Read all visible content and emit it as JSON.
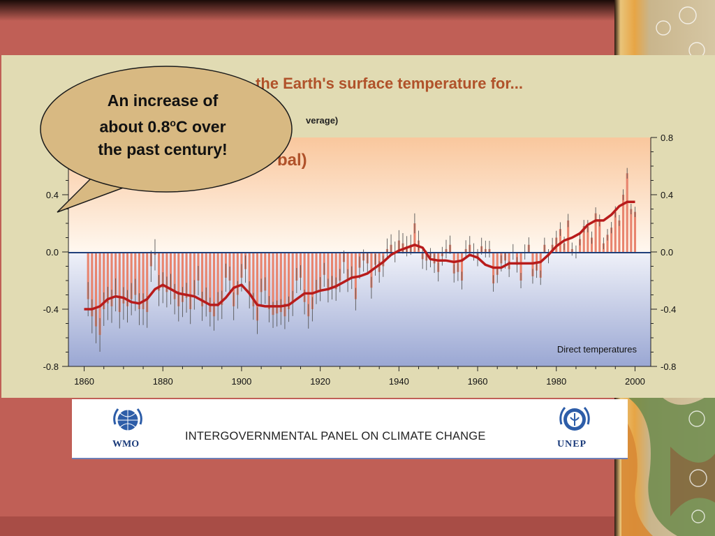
{
  "slide": {
    "callout": {
      "line1": "An increase of",
      "line2_prefix": "about 0.8",
      "line2_superscript": "o",
      "line2_suffix": "C over",
      "line3": "the past century!"
    },
    "footer": {
      "org_name": "INTERGOVERNMENTAL PANEL ON CLIMATE CHANGE",
      "left_logo_label": "WMO",
      "right_logo_label": "UNEP"
    },
    "colors": {
      "background": "#c05f56",
      "chart_panel": "#e1dbb3",
      "title_color": "#b0522a",
      "bar_color": "#e8846e",
      "smooth_line": "#b81b1b",
      "zero_line": "#1f3f7a",
      "callout_fill": "#d8b982"
    }
  },
  "chart_data": {
    "type": "bar",
    "title_visible": "the Earth's surface temperature for...",
    "subtitle_visible": "verage)",
    "region_label_visible": "bal)",
    "annotation": "Direct temperatures",
    "x_ticks": [
      "1860",
      "1880",
      "1900",
      "1920",
      "1940",
      "1960",
      "1980",
      "2000"
    ],
    "y_ticks": [
      "0.8",
      "0.4",
      "0.0",
      "-0.4",
      "-0.8"
    ],
    "y_ticks_left_visible": [
      "0.4",
      "0.0",
      "-0.4",
      "-0.8"
    ],
    "xlim": [
      1856,
      2004
    ],
    "ylim": [
      -0.8,
      0.8
    ],
    "series": [
      {
        "kind": "annual-bars",
        "x": [
          1861,
          1862,
          1863,
          1864,
          1865,
          1866,
          1867,
          1868,
          1869,
          1870,
          1871,
          1872,
          1873,
          1874,
          1875,
          1876,
          1877,
          1878,
          1879,
          1880,
          1881,
          1882,
          1883,
          1884,
          1885,
          1886,
          1887,
          1888,
          1889,
          1890,
          1891,
          1892,
          1893,
          1894,
          1895,
          1896,
          1897,
          1898,
          1899,
          1900,
          1901,
          1902,
          1903,
          1904,
          1905,
          1906,
          1907,
          1908,
          1909,
          1910,
          1911,
          1912,
          1913,
          1914,
          1915,
          1916,
          1917,
          1918,
          1919,
          1920,
          1921,
          1922,
          1923,
          1924,
          1925,
          1926,
          1927,
          1928,
          1929,
          1930,
          1931,
          1932,
          1933,
          1934,
          1935,
          1936,
          1937,
          1938,
          1939,
          1940,
          1941,
          1942,
          1943,
          1944,
          1945,
          1946,
          1947,
          1948,
          1949,
          1950,
          1951,
          1952,
          1953,
          1954,
          1955,
          1956,
          1957,
          1958,
          1959,
          1960,
          1961,
          1962,
          1963,
          1964,
          1965,
          1966,
          1967,
          1968,
          1969,
          1970,
          1971,
          1972,
          1973,
          1974,
          1975,
          1976,
          1977,
          1978,
          1979,
          1980,
          1981,
          1982,
          1983,
          1984,
          1985,
          1986,
          1987,
          1988,
          1989,
          1990,
          1991,
          1992,
          1993,
          1994,
          1995,
          1996,
          1997,
          1998,
          1999,
          2000
        ],
        "values": [
          -0.33,
          -0.45,
          -0.52,
          -0.58,
          -0.4,
          -0.36,
          -0.38,
          -0.3,
          -0.42,
          -0.36,
          -0.38,
          -0.33,
          -0.3,
          -0.4,
          -0.4,
          -0.42,
          -0.1,
          -0.02,
          -0.27,
          -0.25,
          -0.28,
          -0.26,
          -0.33,
          -0.38,
          -0.35,
          -0.32,
          -0.4,
          -0.3,
          -0.2,
          -0.38,
          -0.35,
          -0.42,
          -0.45,
          -0.38,
          -0.37,
          -0.18,
          -0.2,
          -0.38,
          -0.3,
          -0.18,
          -0.12,
          -0.3,
          -0.38,
          -0.48,
          -0.28,
          -0.27,
          -0.4,
          -0.44,
          -0.43,
          -0.42,
          -0.45,
          -0.4,
          -0.36,
          -0.2,
          -0.18,
          -0.35,
          -0.45,
          -0.4,
          -0.28,
          -0.26,
          -0.16,
          -0.27,
          -0.25,
          -0.26,
          -0.2,
          -0.07,
          -0.2,
          -0.18,
          -0.33,
          -0.11,
          -0.06,
          -0.08,
          -0.25,
          -0.09,
          -0.14,
          -0.1,
          0.02,
          0.05,
          0.0,
          0.08,
          0.06,
          0.04,
          0.05,
          0.2,
          0.08,
          -0.05,
          -0.06,
          -0.04,
          -0.08,
          -0.14,
          -0.03,
          0.02,
          0.05,
          -0.15,
          -0.14,
          -0.2,
          0.02,
          0.05,
          0.0,
          -0.04,
          0.04,
          0.02,
          0.02,
          -0.22,
          -0.16,
          -0.08,
          -0.06,
          -0.12,
          0.0,
          -0.09,
          -0.2,
          0.0,
          0.05,
          -0.17,
          -0.13,
          -0.18,
          0.05,
          -0.03,
          0.05,
          0.1,
          0.16,
          0.06,
          0.22,
          0.02,
          0.0,
          0.09,
          0.18,
          0.18,
          0.1,
          0.27,
          0.22,
          0.06,
          0.12,
          0.17,
          0.28,
          0.22,
          0.4,
          0.55,
          0.3,
          0.28
        ]
      },
      {
        "kind": "smoothed-line",
        "x": [
          1860,
          1862,
          1864,
          1866,
          1868,
          1870,
          1872,
          1874,
          1876,
          1878,
          1880,
          1882,
          1884,
          1886,
          1888,
          1890,
          1892,
          1894,
          1896,
          1898,
          1900,
          1902,
          1904,
          1906,
          1908,
          1910,
          1912,
          1914,
          1916,
          1918,
          1920,
          1922,
          1924,
          1926,
          1928,
          1930,
          1932,
          1934,
          1936,
          1938,
          1940,
          1942,
          1944,
          1946,
          1948,
          1950,
          1952,
          1954,
          1956,
          1958,
          1960,
          1962,
          1964,
          1966,
          1968,
          1970,
          1972,
          1974,
          1976,
          1978,
          1980,
          1982,
          1984,
          1986,
          1988,
          1990,
          1992,
          1994,
          1996,
          1998,
          2000
        ],
        "values": [
          -0.4,
          -0.4,
          -0.38,
          -0.33,
          -0.31,
          -0.32,
          -0.35,
          -0.36,
          -0.33,
          -0.26,
          -0.23,
          -0.26,
          -0.29,
          -0.3,
          -0.31,
          -0.34,
          -0.37,
          -0.37,
          -0.32,
          -0.25,
          -0.23,
          -0.29,
          -0.37,
          -0.38,
          -0.38,
          -0.38,
          -0.37,
          -0.33,
          -0.29,
          -0.29,
          -0.27,
          -0.26,
          -0.24,
          -0.21,
          -0.18,
          -0.17,
          -0.15,
          -0.11,
          -0.07,
          -0.02,
          0.01,
          0.03,
          0.05,
          0.03,
          -0.05,
          -0.06,
          -0.06,
          -0.07,
          -0.06,
          -0.02,
          -0.04,
          -0.09,
          -0.11,
          -0.11,
          -0.08,
          -0.08,
          -0.08,
          -0.08,
          -0.07,
          -0.02,
          0.04,
          0.08,
          0.1,
          0.13,
          0.19,
          0.22,
          0.22,
          0.26,
          0.32,
          0.35,
          0.35
        ]
      }
    ],
    "grid": false
  }
}
